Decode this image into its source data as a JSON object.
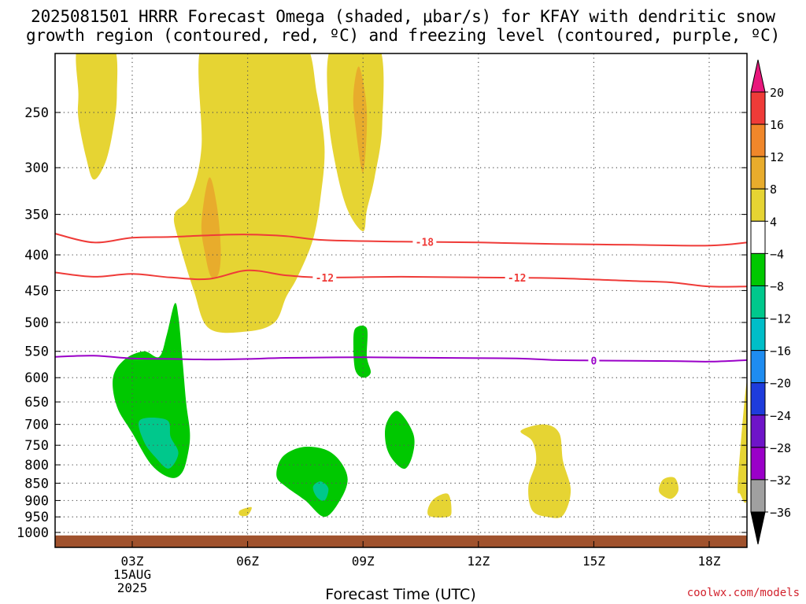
{
  "page": {
    "title_line1": "2025081501 HRRR Forecast Omega (shaded, μbar/s) for KFAY with dendritic snow",
    "title_line2": "growth region (contoured, red, ºC) and freezing level (contoured, purple, ºC)",
    "credit": "coolwx.com/models"
  },
  "chart_data": {
    "type": "time-height cross section",
    "xlabel": "Forecast Time (UTC)",
    "ylabel": "",
    "x_range_hours": [
      1,
      19
    ],
    "y_range_hPa": [
      1025,
      200
    ],
    "y_scale": "log-pressure",
    "y_ticks": [
      250,
      300,
      350,
      400,
      450,
      500,
      550,
      600,
      650,
      700,
      750,
      800,
      850,
      900,
      950,
      1000
    ],
    "x_ticks": [
      {
        "hour": 3,
        "label": "03Z",
        "sub1": "15AUG",
        "sub2": "2025"
      },
      {
        "hour": 6,
        "label": "06Z"
      },
      {
        "hour": 9,
        "label": "09Z"
      },
      {
        "hour": 12,
        "label": "12Z"
      },
      {
        "hour": 15,
        "label": "15Z"
      },
      {
        "hour": 18,
        "label": "18Z"
      }
    ],
    "grid": true,
    "ground": {
      "from_hPa": 1010,
      "color": "#a0522d"
    },
    "colorbar": {
      "labels": [
        "20",
        "16",
        "12",
        "8",
        "4",
        "−4",
        "−8",
        "−12",
        "−16",
        "−20",
        "−24",
        "−28",
        "−32",
        "−36"
      ],
      "top_triangle_color": "#e8177c",
      "bottom_triangle_color": "#000000",
      "colors": [
        "#ef3b38",
        "#f0872a",
        "#e8ac2c",
        "#e6d433",
        "#ffffff",
        "#00c800",
        "#00c88c",
        "#00bec8",
        "#1e8cf0",
        "#1e3cdc",
        "#6e14c8",
        "#9a00c8",
        "#a0a0a0"
      ]
    },
    "contours": [
      {
        "name": "-18",
        "color": "#ef3b38",
        "points": [
          [
            1,
            373
          ],
          [
            2,
            384
          ],
          [
            3,
            378
          ],
          [
            4,
            377
          ],
          [
            5,
            375
          ],
          [
            6,
            374
          ],
          [
            7,
            376
          ],
          [
            8,
            381
          ],
          [
            10,
            383
          ],
          [
            12,
            384
          ],
          [
            14,
            386
          ],
          [
            16,
            387
          ],
          [
            18,
            388
          ],
          [
            19,
            384
          ]
        ],
        "labels": [
          {
            "hour": 10.6,
            "text": "-18"
          }
        ]
      },
      {
        "name": "-12",
        "color": "#ef3b38",
        "points": [
          [
            1,
            424
          ],
          [
            2,
            430
          ],
          [
            3,
            426
          ],
          [
            4,
            431
          ],
          [
            5,
            433
          ],
          [
            6,
            421
          ],
          [
            7,
            428
          ],
          [
            8,
            431
          ],
          [
            10,
            430
          ],
          [
            12,
            431
          ],
          [
            14,
            432
          ],
          [
            16,
            436
          ],
          [
            17,
            438
          ],
          [
            18,
            444
          ],
          [
            19,
            444
          ]
        ],
        "labels": [
          {
            "hour": 8.0,
            "text": "-12"
          },
          {
            "hour": 13.0,
            "text": "-12"
          }
        ]
      },
      {
        "name": "0",
        "color": "#9a00c8",
        "points": [
          [
            1,
            560
          ],
          [
            2,
            558
          ],
          [
            3,
            563
          ],
          [
            4,
            564
          ],
          [
            5,
            565
          ],
          [
            6,
            564
          ],
          [
            7,
            562
          ],
          [
            9,
            561
          ],
          [
            11,
            562
          ],
          [
            13,
            563
          ],
          [
            14,
            566
          ],
          [
            15,
            567
          ],
          [
            17,
            568
          ],
          [
            18,
            569
          ],
          [
            19,
            566
          ]
        ],
        "labels": [
          {
            "hour": 15.0,
            "text": "0"
          }
        ]
      }
    ],
    "regions": [
      {
        "value": "4 to 8",
        "color": "#e6d433",
        "points": [
          [
            1.6,
            200
          ],
          [
            2.5,
            200
          ],
          [
            2.6,
            235
          ],
          [
            2.5,
            265
          ],
          [
            2.3,
            295
          ],
          [
            2.0,
            312
          ],
          [
            1.8,
            290
          ],
          [
            1.6,
            255
          ],
          [
            1.6,
            235
          ]
        ]
      },
      {
        "value": "4 to 8",
        "color": "#e6d433",
        "points": [
          [
            4.8,
            200
          ],
          [
            6.0,
            200
          ],
          [
            6.2,
            206
          ],
          [
            6.5,
            200
          ],
          [
            7.5,
            200
          ],
          [
            7.8,
            235
          ],
          [
            8.0,
            280
          ],
          [
            7.9,
            330
          ],
          [
            7.7,
            380
          ],
          [
            7.3,
            430
          ],
          [
            7.0,
            460
          ],
          [
            6.7,
            500
          ],
          [
            6.0,
            515
          ],
          [
            5.0,
            510
          ],
          [
            4.6,
            450
          ],
          [
            4.2,
            380
          ],
          [
            4.1,
            350
          ],
          [
            4.5,
            330
          ],
          [
            4.8,
            280
          ]
        ]
      },
      {
        "value": "8 to 12",
        "color": "#e8ac2c",
        "points": [
          [
            5.0,
            310
          ],
          [
            5.2,
            340
          ],
          [
            5.3,
            390
          ],
          [
            5.25,
            425
          ],
          [
            5.05,
            430
          ],
          [
            4.9,
            400
          ],
          [
            4.8,
            360
          ]
        ]
      },
      {
        "value": "4 to 8",
        "color": "#e6d433",
        "points": [
          [
            8.2,
            200
          ],
          [
            9.4,
            200
          ],
          [
            9.5,
            260
          ],
          [
            9.3,
            310
          ],
          [
            9.1,
            345
          ],
          [
            9.0,
            370
          ],
          [
            8.6,
            345
          ],
          [
            8.3,
            300
          ],
          [
            8.1,
            250
          ]
        ]
      },
      {
        "value": "8 to 12",
        "color": "#e8ac2c",
        "points": [
          [
            8.9,
            215
          ],
          [
            9.1,
            250
          ],
          [
            9.0,
            305
          ],
          [
            8.8,
            260
          ],
          [
            8.75,
            235
          ]
        ]
      },
      {
        "value": "4 to 8",
        "color": "#e6d433",
        "points": [
          [
            13.1,
            715
          ],
          [
            13.7,
            700
          ],
          [
            14.1,
            720
          ],
          [
            14.2,
            790
          ],
          [
            14.4,
            870
          ],
          [
            14.2,
            945
          ],
          [
            13.8,
            950
          ],
          [
            13.4,
            930
          ],
          [
            13.3,
            860
          ],
          [
            13.5,
            790
          ],
          [
            13.4,
            740
          ]
        ]
      },
      {
        "value": "4 to 8",
        "color": "#e6d433",
        "points": [
          [
            10.8,
            900
          ],
          [
            11.2,
            880
          ],
          [
            11.3,
            930
          ],
          [
            11.2,
            950
          ],
          [
            10.7,
            945
          ]
        ]
      },
      {
        "value": "4 to 8",
        "color": "#e6d433",
        "points": [
          [
            16.8,
            840
          ],
          [
            17.1,
            835
          ],
          [
            17.2,
            870
          ],
          [
            17.0,
            895
          ],
          [
            16.7,
            875
          ]
        ]
      },
      {
        "value": "4 to 8",
        "color": "#e6d433",
        "points": [
          [
            5.8,
            930
          ],
          [
            6.1,
            920
          ],
          [
            6.0,
            945
          ],
          [
            5.8,
            945
          ]
        ]
      },
      {
        "value": "4 to 8",
        "color": "#e6d433",
        "points": [
          [
            18.75,
            840
          ],
          [
            19,
            600
          ],
          [
            19,
            880
          ],
          [
            18.8,
            880
          ]
        ]
      },
      {
        "value": "-8 to -4",
        "color": "#00c800",
        "points": [
          [
            3.7,
            560
          ],
          [
            3.9,
            520
          ],
          [
            4.1,
            470
          ],
          [
            4.2,
            490
          ],
          [
            4.3,
            560
          ],
          [
            4.4,
            650
          ],
          [
            4.5,
            720
          ],
          [
            4.45,
            770
          ],
          [
            4.3,
            820
          ],
          [
            4.0,
            835
          ],
          [
            3.5,
            800
          ],
          [
            3.0,
            720
          ],
          [
            2.6,
            660
          ],
          [
            2.5,
            600
          ],
          [
            2.8,
            565
          ],
          [
            3.3,
            550
          ]
        ]
      },
      {
        "value": "-12 to -8",
        "color": "#00c88c",
        "points": [
          [
            3.2,
            690
          ],
          [
            3.9,
            690
          ],
          [
            4.0,
            730
          ],
          [
            4.2,
            770
          ],
          [
            3.95,
            810
          ],
          [
            3.6,
            780
          ],
          [
            3.3,
            740
          ]
        ]
      },
      {
        "value": "-8 to -4",
        "color": "#00c800",
        "points": [
          [
            8.8,
            510
          ],
          [
            9.1,
            510
          ],
          [
            9.1,
            560
          ],
          [
            9.2,
            590
          ],
          [
            9.0,
            600
          ],
          [
            8.8,
            585
          ],
          [
            8.75,
            540
          ]
        ]
      },
      {
        "value": "-8 to -4",
        "color": "#00c800",
        "points": [
          [
            9.6,
            700
          ],
          [
            9.9,
            670
          ],
          [
            10.3,
            720
          ],
          [
            10.3,
            770
          ],
          [
            10.1,
            810
          ],
          [
            9.8,
            790
          ],
          [
            9.6,
            750
          ]
        ]
      },
      {
        "value": "-8 to -4",
        "color": "#00c800",
        "points": [
          [
            6.9,
            780
          ],
          [
            7.4,
            755
          ],
          [
            8.0,
            760
          ],
          [
            8.4,
            790
          ],
          [
            8.6,
            840
          ],
          [
            8.4,
            900
          ],
          [
            8.0,
            950
          ],
          [
            7.5,
            900
          ],
          [
            7.0,
            860
          ],
          [
            6.75,
            830
          ]
        ]
      },
      {
        "value": "-12 to -8",
        "color": "#00c88c",
        "points": [
          [
            7.7,
            860
          ],
          [
            7.9,
            845
          ],
          [
            8.1,
            865
          ],
          [
            8.0,
            900
          ],
          [
            7.8,
            890
          ]
        ]
      }
    ]
  }
}
